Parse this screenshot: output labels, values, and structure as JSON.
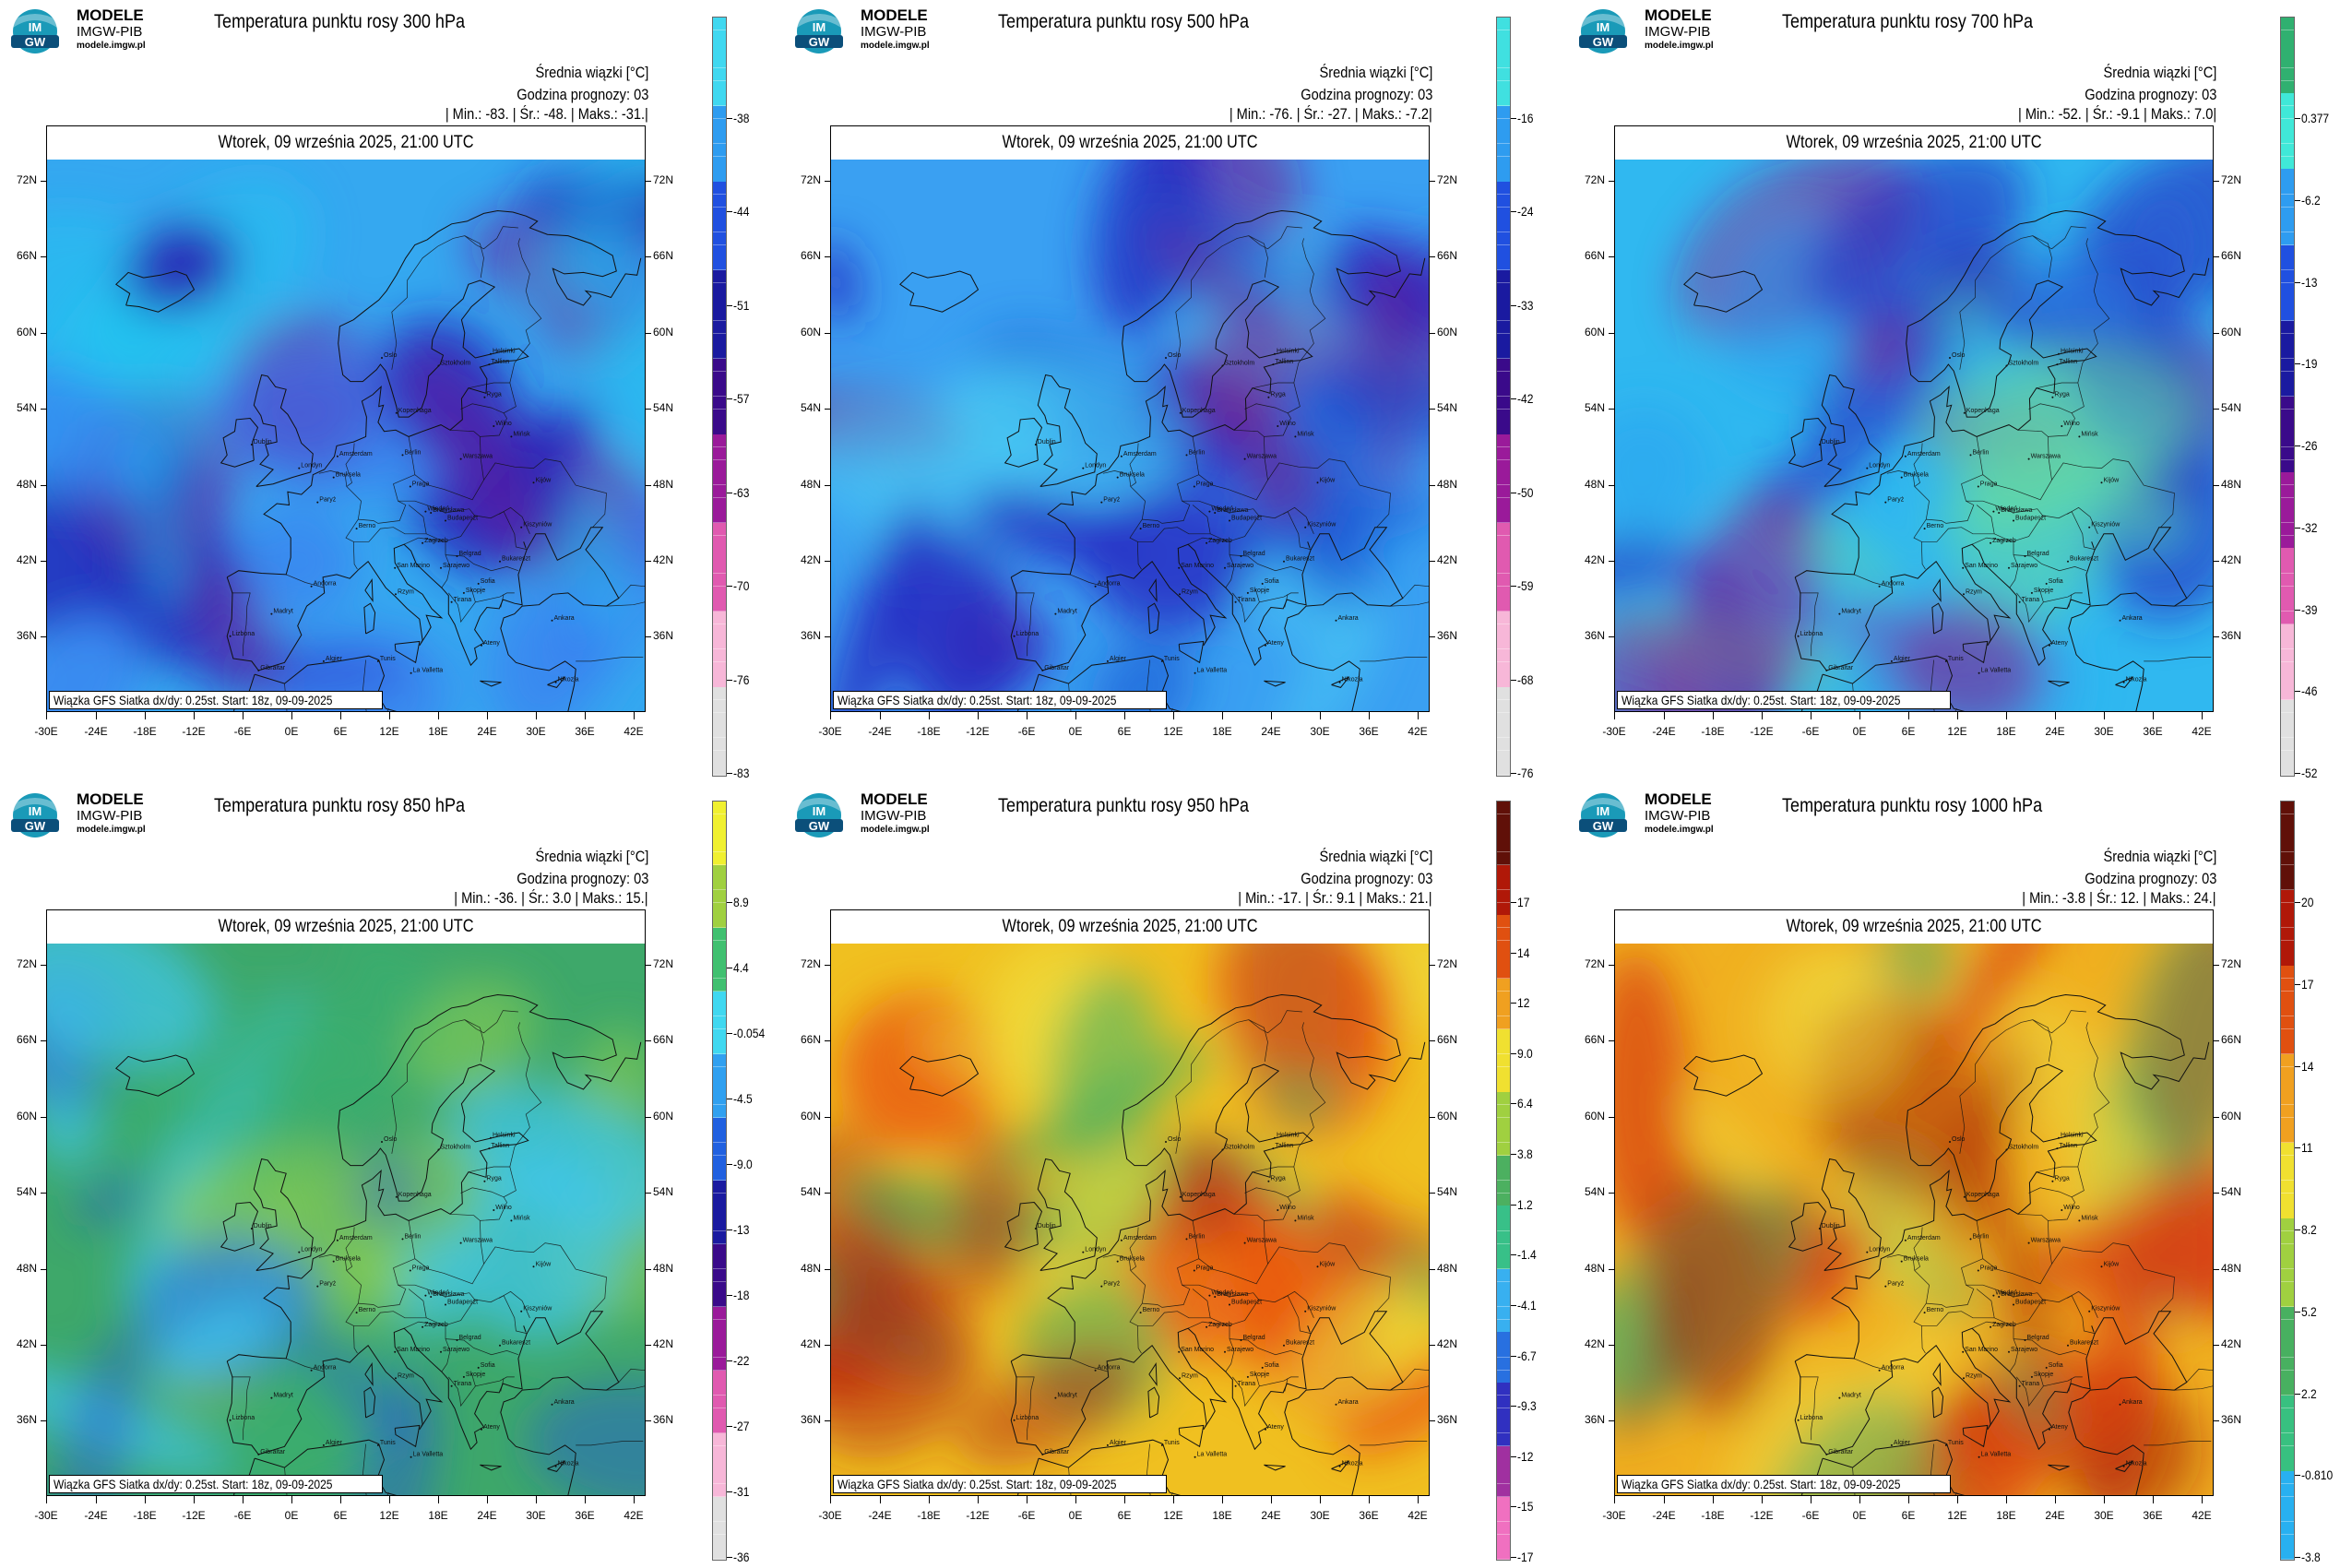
{
  "brand": {
    "line1": "MODELE",
    "line2": "IMGW-PIB",
    "line3": "modele.imgw.pl",
    "logo_text": "IM GW"
  },
  "common": {
    "meta_line1": "Średnia wiązki [°C]",
    "meta_line2": "Godzina prognozy: 03",
    "date_label": "Wtorek, 09 września 2025, 21:00 UTC",
    "footnote": "Wiązka GFS Siatka dx/dy: 0.25st. Start: 18z, 09-09-2025",
    "lat_labels": [
      "72N",
      "66N",
      "60N",
      "54N",
      "48N",
      "42N",
      "36N"
    ],
    "lon_labels": [
      "-30E",
      "-24E",
      "-18E",
      "-12E",
      "-6E",
      "0E",
      "6E",
      "12E",
      "18E",
      "24E",
      "30E",
      "36E",
      "42E"
    ],
    "cities": [
      {
        "name": "Oslo",
        "lon": 10.7,
        "lat": 59.9
      },
      {
        "name": "Sztokholm",
        "lon": 18.1,
        "lat": 59.3
      },
      {
        "name": "Helsinki",
        "lon": 24.9,
        "lat": 60.2
      },
      {
        "name": "Tallinn",
        "lon": 24.7,
        "lat": 59.4
      },
      {
        "name": "Ryga",
        "lon": 24.1,
        "lat": 56.9
      },
      {
        "name": "Wilno",
        "lon": 25.3,
        "lat": 54.7
      },
      {
        "name": "Kopenhaga",
        "lon": 12.6,
        "lat": 55.7
      },
      {
        "name": "Mińsk",
        "lon": 27.6,
        "lat": 53.9
      },
      {
        "name": "Dublin",
        "lon": -6.3,
        "lat": 53.3
      },
      {
        "name": "Londyn",
        "lon": -0.1,
        "lat": 51.5
      },
      {
        "name": "Amsterdam",
        "lon": 4.9,
        "lat": 52.4
      },
      {
        "name": "Bruksela",
        "lon": 4.4,
        "lat": 50.8
      },
      {
        "name": "Berlin",
        "lon": 13.4,
        "lat": 52.5
      },
      {
        "name": "Warszawa",
        "lon": 21.0,
        "lat": 52.2
      },
      {
        "name": "Paryż",
        "lon": 2.3,
        "lat": 48.9
      },
      {
        "name": "Praga",
        "lon": 14.4,
        "lat": 50.1
      },
      {
        "name": "Kijów",
        "lon": 30.5,
        "lat": 50.4
      },
      {
        "name": "Wiedeń",
        "lon": 16.4,
        "lat": 48.2
      },
      {
        "name": "Bratysława",
        "lon": 17.1,
        "lat": 48.1
      },
      {
        "name": "Budapeszt",
        "lon": 19.0,
        "lat": 47.5
      },
      {
        "name": "Kiszyniów",
        "lon": 28.9,
        "lat": 47.0
      },
      {
        "name": "Berno",
        "lon": 7.4,
        "lat": 46.9
      },
      {
        "name": "Zagrzeb",
        "lon": 16.0,
        "lat": 45.8
      },
      {
        "name": "Belgrad",
        "lon": 20.5,
        "lat": 44.8
      },
      {
        "name": "Bukareszt",
        "lon": 26.1,
        "lat": 44.4
      },
      {
        "name": "Sarajewo",
        "lon": 18.4,
        "lat": 43.9
      },
      {
        "name": "San Marino",
        "lon": 12.4,
        "lat": 43.9
      },
      {
        "name": "Sofia",
        "lon": 23.3,
        "lat": 42.7
      },
      {
        "name": "Skopje",
        "lon": 21.4,
        "lat": 42.0
      },
      {
        "name": "Andorra",
        "lon": 1.5,
        "lat": 42.5
      },
      {
        "name": "Rzym",
        "lon": 12.5,
        "lat": 41.9
      },
      {
        "name": "Tirana",
        "lon": 19.8,
        "lat": 41.3
      },
      {
        "name": "Madryt",
        "lon": -3.7,
        "lat": 40.4
      },
      {
        "name": "Ankara",
        "lon": 32.9,
        "lat": 39.9
      },
      {
        "name": "Lizbona",
        "lon": -9.1,
        "lat": 38.7
      },
      {
        "name": "Ateny",
        "lon": 23.7,
        "lat": 38.0
      },
      {
        "name": "Gibraltar",
        "lon": -5.4,
        "lat": 36.1
      },
      {
        "name": "Algier",
        "lon": 3.1,
        "lat": 36.8
      },
      {
        "name": "Tunis",
        "lon": 10.2,
        "lat": 36.8
      },
      {
        "name": "La Valletta",
        "lon": 14.5,
        "lat": 35.9
      },
      {
        "name": "Nikozja",
        "lon": 33.4,
        "lat": 35.2
      },
      {
        "name": "Rabat",
        "lon": -6.8,
        "lat": 34.0
      }
    ]
  },
  "panels": [
    {
      "title": "Temperatura punktu rosy 300 hPa",
      "stats": {
        "min": "-83.",
        "avg": "-48.",
        "max": "-31."
      },
      "colorbar": {
        "ticks": [
          "-38",
          "-44",
          "-51",
          "-57",
          "-63",
          "-70",
          "-76",
          "-83"
        ]
      }
    },
    {
      "title": "Temperatura punktu rosy 500 hPa",
      "stats": {
        "min": "-76.",
        "avg": "-27.",
        "max": "-7.2"
      },
      "colorbar": {
        "ticks": [
          "-16",
          "-24",
          "-33",
          "-42",
          "-50",
          "-59",
          "-68",
          "-76"
        ]
      }
    },
    {
      "title": "Temperatura punktu rosy 700 hPa",
      "stats": {
        "min": "-52.",
        "avg": "-9.1",
        "max": "7.0"
      },
      "colorbar": {
        "ticks": [
          "0.377",
          "-6.2",
          "-13",
          "-19",
          "-26",
          "-32",
          "-39",
          "-46",
          "-52"
        ]
      }
    },
    {
      "title": "Temperatura punktu rosy 850 hPa",
      "stats": {
        "min": "-36.",
        "avg": "3.0",
        "max": "15."
      },
      "colorbar": {
        "ticks": [
          "8.9",
          "4.4",
          "-0.054",
          "-4.5",
          "-9.0",
          "-13",
          "-18",
          "-22",
          "-27",
          "-31",
          "-36"
        ]
      }
    },
    {
      "title": "Temperatura punktu rosy 950 hPa",
      "stats": {
        "min": "-17.",
        "avg": "9.1",
        "max": "21."
      },
      "colorbar": {
        "ticks": [
          "17",
          "14",
          "12",
          "9.0",
          "6.4",
          "3.8",
          "1.2",
          "-1.4",
          "-4.1",
          "-6.7",
          "-9.3",
          "-12",
          "-15",
          "-17"
        ]
      }
    },
    {
      "title": "Temperatura punktu rosy 1000 hPa",
      "stats": {
        "min": "-3.8",
        "avg": "12.",
        "max": "24."
      },
      "colorbar": {
        "ticks": [
          "20",
          "17",
          "14",
          "11",
          "8.2",
          "5.2",
          "2.2",
          "-0.810",
          "-3.8"
        ]
      }
    }
  ],
  "stat_labels": {
    "min": "| Min.:",
    "avg": "| Śr.:",
    "max": "| Maks.:"
  }
}
